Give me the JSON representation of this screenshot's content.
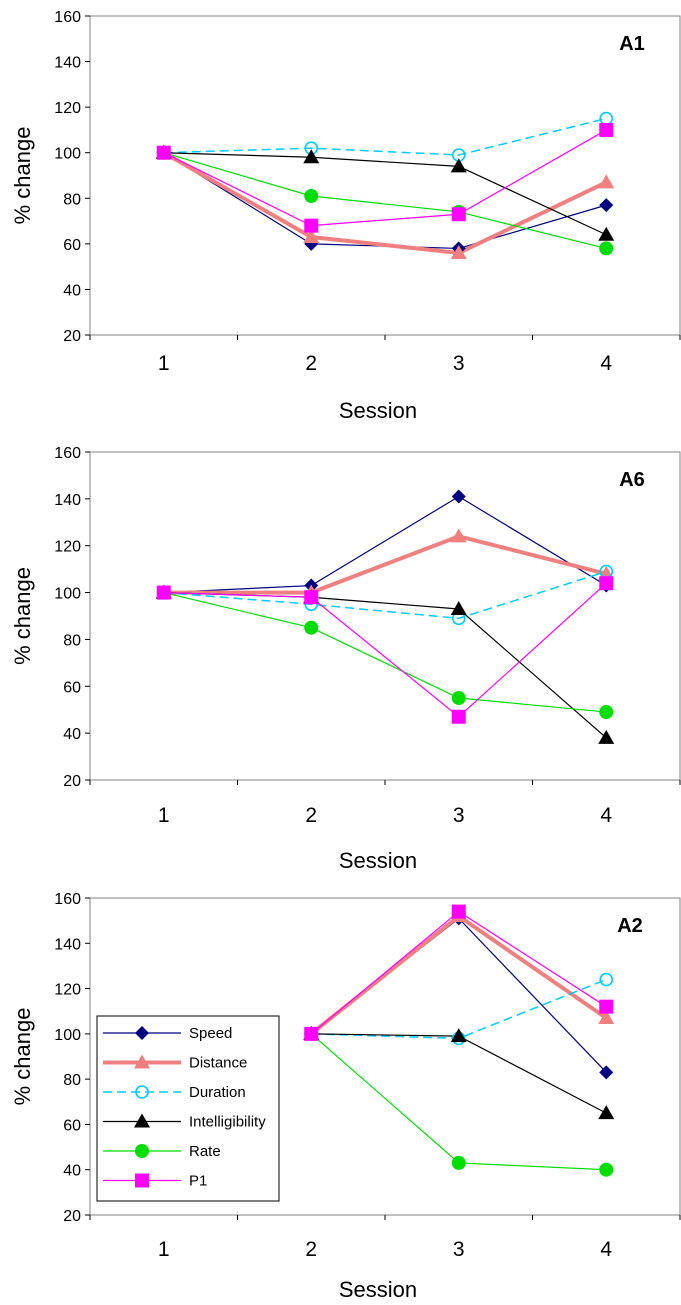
{
  "chart_data": [
    {
      "type": "line",
      "panel_label": "A1",
      "xlabel": "Session",
      "ylabel": "% change",
      "x": [
        1,
        2,
        3,
        4
      ],
      "categories": [
        "1",
        "2",
        "3",
        "4"
      ],
      "ylim": [
        20,
        160
      ],
      "yticks": [
        20,
        40,
        60,
        80,
        100,
        120,
        140,
        160
      ],
      "grid": false,
      "legend": false,
      "series": [
        {
          "name": "Speed",
          "values": [
            100,
            60,
            58,
            77
          ],
          "color": "#000080",
          "marker": "diamond",
          "dash": "solid",
          "width": 1.2
        },
        {
          "name": "Distance",
          "values": [
            100,
            63,
            56,
            87
          ],
          "color": "#f08080",
          "marker": "triangle",
          "dash": "solid",
          "width": 4
        },
        {
          "name": "Duration",
          "values": [
            100,
            102,
            99,
            115
          ],
          "color": "#00ccff",
          "marker": "circle-open",
          "dash": "dashed",
          "width": 1.5
        },
        {
          "name": "Intelligibility",
          "values": [
            100,
            98,
            94,
            64
          ],
          "color": "#000000",
          "marker": "triangle",
          "dash": "solid",
          "width": 1.2
        },
        {
          "name": "Rate",
          "values": [
            100,
            81,
            74,
            58
          ],
          "color": "#00dd00",
          "marker": "circle",
          "dash": "solid",
          "width": 1.2
        },
        {
          "name": "P1",
          "values": [
            100,
            68,
            73,
            110
          ],
          "color": "#ff00ff",
          "marker": "square",
          "dash": "solid",
          "width": 1.2
        }
      ]
    },
    {
      "type": "line",
      "panel_label": "A6",
      "xlabel": "Session",
      "ylabel": "% change",
      "x": [
        1,
        2,
        3,
        4
      ],
      "categories": [
        "1",
        "2",
        "3",
        "4"
      ],
      "ylim": [
        20,
        160
      ],
      "yticks": [
        20,
        40,
        60,
        80,
        100,
        120,
        140,
        160
      ],
      "grid": false,
      "legend": false,
      "series": [
        {
          "name": "Speed",
          "values": [
            100,
            103,
            141,
            103
          ],
          "color": "#000080",
          "marker": "diamond",
          "dash": "solid",
          "width": 1.2
        },
        {
          "name": "Distance",
          "values": [
            100,
            100,
            124,
            108
          ],
          "color": "#f08080",
          "marker": "triangle",
          "dash": "solid",
          "width": 4
        },
        {
          "name": "Duration",
          "values": [
            100,
            95,
            89,
            109
          ],
          "color": "#00ccff",
          "marker": "circle-open",
          "dash": "dashed",
          "width": 1.5
        },
        {
          "name": "Intelligibility",
          "values": [
            100,
            98,
            93,
            38
          ],
          "color": "#000000",
          "marker": "triangle",
          "dash": "solid",
          "width": 1.2
        },
        {
          "name": "Rate",
          "values": [
            100,
            85,
            55,
            49
          ],
          "color": "#00dd00",
          "marker": "circle",
          "dash": "solid",
          "width": 1.2
        },
        {
          "name": "P1",
          "values": [
            100,
            98,
            47,
            104
          ],
          "color": "#ff00ff",
          "marker": "square",
          "dash": "solid",
          "width": 1.2
        }
      ]
    },
    {
      "type": "line",
      "panel_label": "A2",
      "xlabel": "Session",
      "ylabel": "% change",
      "x": [
        1,
        2,
        3,
        4
      ],
      "categories": [
        "1",
        "2",
        "3",
        "4"
      ],
      "ylim": [
        20,
        160
      ],
      "yticks": [
        20,
        40,
        60,
        80,
        100,
        120,
        140,
        160
      ],
      "grid": false,
      "legend": true,
      "legend_position": "left",
      "series": [
        {
          "name": "Speed",
          "x": [
            2,
            3,
            4
          ],
          "values": [
            100,
            151,
            83
          ],
          "color": "#000080",
          "marker": "diamond",
          "dash": "solid",
          "width": 1.2
        },
        {
          "name": "Distance",
          "x": [
            2,
            3,
            4
          ],
          "values": [
            100,
            152,
            107
          ],
          "color": "#f08080",
          "marker": "triangle",
          "dash": "solid",
          "width": 4
        },
        {
          "name": "Duration",
          "x": [
            2,
            3,
            4
          ],
          "values": [
            100,
            98,
            124
          ],
          "color": "#00ccff",
          "marker": "circle-open",
          "dash": "dashed",
          "width": 1.5
        },
        {
          "name": "Intelligibility",
          "x": [
            2,
            3,
            4
          ],
          "values": [
            100,
            99,
            65
          ],
          "color": "#000000",
          "marker": "triangle",
          "dash": "solid",
          "width": 1.2
        },
        {
          "name": "Rate",
          "x": [
            2,
            3,
            4
          ],
          "values": [
            100,
            43,
            40
          ],
          "color": "#00dd00",
          "marker": "circle",
          "dash": "solid",
          "width": 1.2
        },
        {
          "name": "P1",
          "x": [
            2,
            3,
            4
          ],
          "values": [
            100,
            154,
            112
          ],
          "color": "#ff00ff",
          "marker": "square",
          "dash": "solid",
          "width": 1.2
        }
      ]
    }
  ]
}
